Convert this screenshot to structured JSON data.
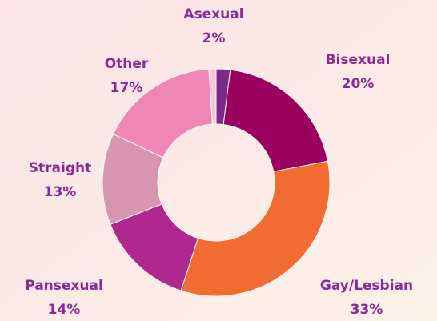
{
  "chart_data": {
    "type": "donut",
    "categories": [
      "Asexual",
      "Bisexual",
      "Gay/Lesbian",
      "Pansexual",
      "Straight",
      "Other",
      null
    ],
    "values": [
      2,
      20,
      33,
      14,
      13,
      17,
      1
    ],
    "value_labels": [
      "2%",
      "20%",
      "33%",
      "14%",
      "13%",
      "17%",
      null
    ],
    "colors": [
      "#7b2a8a",
      "#9b0060",
      "#f26b30",
      "#b0278f",
      "#d795b0",
      "#ef87b5",
      "#f7c6d4"
    ]
  }
}
